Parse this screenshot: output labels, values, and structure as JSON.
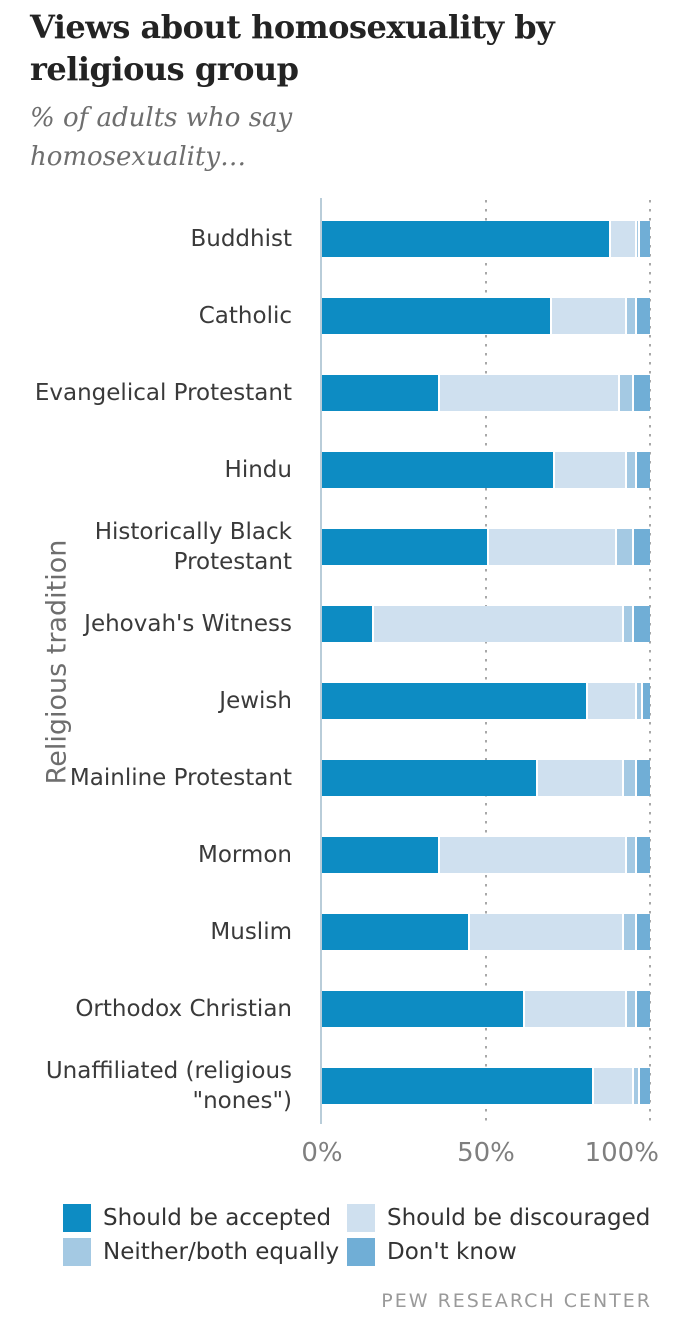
{
  "header": {
    "title_line1": "Views about homosexuality by",
    "title_line2": "religious group",
    "subtitle_line1": "% of adults who say",
    "subtitle_line2": "homosexuality…"
  },
  "axes": {
    "y_title": "Religious tradition",
    "x_ticks": [
      {
        "label": "0%",
        "value": 0
      },
      {
        "label": "50%",
        "value": 50
      },
      {
        "label": "100%",
        "value": 100
      }
    ]
  },
  "footer": {
    "source": "PEW RESEARCH CENTER"
  },
  "chart_data": {
    "type": "bar",
    "stacked": true,
    "orientation": "horizontal",
    "title": "Views about homosexuality by religious group",
    "subtitle": "% of adults who say homosexuality…",
    "xlabel": "",
    "ylabel": "Religious tradition",
    "xlim": [
      0,
      100
    ],
    "grid": "dotted vertical lines at 50% and 100%",
    "legend_position": "bottom",
    "categories": [
      "Buddhist",
      "Catholic",
      "Evangelical Protestant",
      "Hindu",
      "Historically Black Protestant",
      "Jehovah's Witness",
      "Jewish",
      "Mainline Protestant",
      "Mormon",
      "Muslim",
      "Orthodox Christian",
      "Unaffiliated (religious \"nones\")"
    ],
    "series": [
      {
        "name": "Should be accepted",
        "color": "#0d8cc3",
        "values": [
          88,
          70,
          36,
          71,
          51,
          16,
          81,
          66,
          36,
          45,
          62,
          83
        ]
      },
      {
        "name": "Should be discouraged",
        "color": "#cfe0ef",
        "values": [
          8,
          23,
          55,
          22,
          39,
          76,
          15,
          26,
          57,
          47,
          31,
          12
        ]
      },
      {
        "name": "Neither/both equally",
        "color": "#a4c9e3",
        "values": [
          1,
          3,
          4,
          3,
          5,
          3,
          2,
          4,
          3,
          4,
          3,
          2
        ]
      },
      {
        "name": "Don't know",
        "color": "#70aed6",
        "values": [
          3,
          4,
          5,
          4,
          5,
          5,
          2,
          4,
          4,
          4,
          4,
          3
        ]
      }
    ],
    "colors": {
      "accent_bar": "#0d8cc3",
      "axis_line": "#b9cdd9",
      "gridline": "#a8a8a8"
    }
  }
}
